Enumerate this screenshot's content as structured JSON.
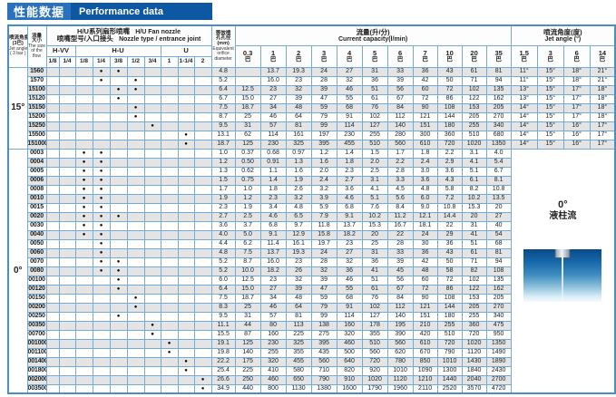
{
  "title": {
    "zh": "性能数据",
    "en": "Performance data"
  },
  "colors": {
    "title_blue": "#0d57a3",
    "title_blue_light": "#2a72bd",
    "border_blue": "#74aad4",
    "row_gray": "#e4e4e4"
  },
  "header": {
    "jet_angle_col": {
      "zh": "喷流角度",
      "zh2": "(3巴)",
      "en": "Jet angle",
      "en2": "( 3 bar )"
    },
    "flow_col": {
      "zh": "流量",
      "zh2": "大小",
      "en1": "The size",
      "en2": "of the",
      "en3": "flow"
    },
    "nozzle_group": {
      "zh": "H/U系列扇形喷嘴",
      "en": "H/U  Fan nozzle",
      "zh2": "喷嘴型号/入口接头",
      "en2": "Nozzle type / entrance joint"
    },
    "nozzle_subgroups": [
      {
        "label": "H-VV",
        "cols": [
          "1/8",
          "1/4"
        ]
      },
      {
        "label": "H-U",
        "cols": [
          "1/8",
          "1/4",
          "3/8",
          "1/2",
          "3/4"
        ]
      },
      {
        "label": "U",
        "cols": [
          "1",
          "1-1/4",
          "2"
        ]
      }
    ],
    "orifice_col": {
      "zh": "等效喷",
      "zh2": "孔孔径",
      "unit": "(mm)",
      "en1": "Equivalent",
      "en2": "orifice",
      "en3": "diameter"
    },
    "capacity_group": {
      "zh": "流量(升/分)",
      "en": "Current capacity(l/min)"
    },
    "pressures": [
      "0.3",
      "1",
      "2",
      "3",
      "4",
      "5",
      "6",
      "7",
      "10",
      "20",
      "35"
    ],
    "bar_unit": "巴",
    "angle_group": {
      "zh": "喷流角度(度)",
      "en": "Jet angle (°)"
    },
    "angle_pressures": [
      "1.5",
      "3",
      "6",
      "14"
    ]
  },
  "sections": [
    {
      "angle": "15°",
      "rows": [
        {
          "flow": "1560",
          "dots": [
            3,
            4
          ],
          "orifice": "4.8",
          "cap": [
            "",
            "13.7",
            "19.3",
            "24",
            "27",
            "31",
            "33",
            "36",
            "43",
            "61",
            "81"
          ],
          "angles": [
            "11°",
            "15°",
            "18°",
            "21°"
          ]
        },
        {
          "flow": "1570",
          "dots": [
            3,
            5
          ],
          "orifice": "5.2",
          "cap": [
            "",
            "16.0",
            "23",
            "28",
            "32",
            "36",
            "39",
            "42",
            "50",
            "71",
            "94"
          ],
          "angles": [
            "11°",
            "15°",
            "18°",
            "21°"
          ]
        },
        {
          "flow": "15100",
          "dots": [
            4,
            5
          ],
          "orifice": "6.4",
          "cap": [
            "12.5",
            "23",
            "32",
            "39",
            "46",
            "51",
            "56",
            "60",
            "72",
            "102",
            "135"
          ],
          "angles": [
            "13°",
            "15°",
            "17°",
            "18°"
          ]
        },
        {
          "flow": "15120",
          "dots": [
            4
          ],
          "orifice": "6.7",
          "cap": [
            "15.0",
            "27",
            "39",
            "47",
            "55",
            "61",
            "67",
            "72",
            "86",
            "122",
            "162"
          ],
          "angles": [
            "13°",
            "15°",
            "17°",
            "18°"
          ]
        },
        {
          "flow": "15150",
          "dots": [
            5
          ],
          "orifice": "7.5",
          "cap": [
            "18.7",
            "34",
            "48",
            "59",
            "68",
            "76",
            "84",
            "90",
            "108",
            "153",
            "205"
          ],
          "angles": [
            "14°",
            "15°",
            "17°",
            "18°"
          ]
        },
        {
          "flow": "15200",
          "dots": [
            5
          ],
          "orifice": "8.7",
          "cap": [
            "25",
            "46",
            "64",
            "79",
            "91",
            "102",
            "112",
            "121",
            "144",
            "205",
            "270"
          ],
          "angles": [
            "14°",
            "15°",
            "17°",
            "18°"
          ]
        },
        {
          "flow": "15250",
          "dots": [
            6
          ],
          "orifice": "9.5",
          "cap": [
            "31",
            "57",
            "81",
            "99",
            "114",
            "127",
            "140",
            "151",
            "180",
            "255",
            "340"
          ],
          "angles": [
            "14°",
            "15°",
            "16°",
            "17°"
          ]
        },
        {
          "flow": "15500",
          "dots": [
            8
          ],
          "orifice": "13.1",
          "cap": [
            "62",
            "114",
            "161",
            "197",
            "230",
            "255",
            "280",
            "300",
            "360",
            "510",
            "680"
          ],
          "angles": [
            "14°",
            "15°",
            "16°",
            "17°"
          ]
        },
        {
          "flow": "151000",
          "dots": [
            8
          ],
          "orifice": "18.7",
          "cap": [
            "125",
            "230",
            "325",
            "395",
            "455",
            "510",
            "560",
            "610",
            "720",
            "1020",
            "1350"
          ],
          "angles": [
            "14°",
            "15°",
            "16°",
            "17°"
          ]
        }
      ]
    },
    {
      "angle": "0°",
      "right_label": {
        "line1": "0°",
        "line2": "液柱流"
      },
      "rows": [
        {
          "flow": "0003",
          "dots": [
            2,
            3
          ],
          "orifice": "1.0",
          "cap": [
            "0.37",
            "0.68",
            "0.97",
            "1.2",
            "1.4",
            "1.5",
            "1.7",
            "1.8",
            "2.2",
            "3.1",
            "4.0"
          ]
        },
        {
          "flow": "0004",
          "dots": [
            2,
            3
          ],
          "orifice": "1.2",
          "cap": [
            "0.50",
            "0.91",
            "1.3",
            "1.6",
            "1.8",
            "2.0",
            "2.2",
            "2.4",
            "2.9",
            "4.1",
            "5.4"
          ]
        },
        {
          "flow": "0005",
          "dots": [
            2,
            3
          ],
          "orifice": "1.3",
          "cap": [
            "0.62",
            "1.1",
            "1.6",
            "2.0",
            "2.3",
            "2.5",
            "2.8",
            "3.0",
            "3.6",
            "5.1",
            "6.7"
          ]
        },
        {
          "flow": "0006",
          "dots": [
            2,
            3
          ],
          "orifice": "1.5",
          "cap": [
            "0.75",
            "1.4",
            "1.9",
            "2.4",
            "2.7",
            "3.1",
            "3.3",
            "3.6",
            "4.3",
            "6.1",
            "8.1"
          ]
        },
        {
          "flow": "0008",
          "dots": [
            2,
            3
          ],
          "orifice": "1.7",
          "cap": [
            "1.0",
            "1.8",
            "2.6",
            "3.2",
            "3.6",
            "4.1",
            "4.5",
            "4.8",
            "5.8",
            "8.2",
            "10.8"
          ]
        },
        {
          "flow": "0010",
          "dots": [
            2,
            3
          ],
          "orifice": "1.9",
          "cap": [
            "1.2",
            "2.3",
            "3.2",
            "3.9",
            "4.6",
            "5.1",
            "5.6",
            "6.0",
            "7.2",
            "10.2",
            "13.5"
          ]
        },
        {
          "flow": "0015",
          "dots": [
            2,
            3
          ],
          "orifice": "2.3",
          "cap": [
            "1.9",
            "3.4",
            "4.8",
            "5.9",
            "6.8",
            "7.6",
            "8.4",
            "9.0",
            "10.8",
            "15.3",
            "20"
          ]
        },
        {
          "flow": "0020",
          "dots": [
            2,
            3,
            4
          ],
          "orifice": "2.7",
          "cap": [
            "2.5",
            "4.6",
            "6.5",
            "7.9",
            "9.1",
            "10.2",
            "11.2",
            "12.1",
            "14.4",
            "20",
            "27"
          ]
        },
        {
          "flow": "0030",
          "dots": [
            2,
            3
          ],
          "orifice": "3.6",
          "cap": [
            "3.7",
            "6.8",
            "9.7",
            "11.8",
            "13.7",
            "15.3",
            "16.7",
            "18.1",
            "22",
            "31",
            "40"
          ]
        },
        {
          "flow": "0040",
          "dots": [
            2,
            3
          ],
          "orifice": "4.0",
          "cap": [
            "5.0",
            "9.1",
            "12.9",
            "15.8",
            "18.2",
            "20",
            "22",
            "24",
            "29",
            "41",
            "54"
          ]
        },
        {
          "flow": "0050",
          "dots": [
            3
          ],
          "orifice": "4.4",
          "cap": [
            "6.2",
            "11.4",
            "16.1",
            "19.7",
            "23",
            "25",
            "28",
            "30",
            "36",
            "51",
            "68"
          ]
        },
        {
          "flow": "0060",
          "dots": [
            3
          ],
          "orifice": "4.8",
          "cap": [
            "7.5",
            "13.7",
            "19.3",
            "24",
            "27",
            "31",
            "33",
            "36",
            "43",
            "61",
            "81"
          ]
        },
        {
          "flow": "0070",
          "dots": [
            3,
            4
          ],
          "orifice": "5.2",
          "cap": [
            "8.7",
            "16.0",
            "23",
            "28",
            "32",
            "36",
            "39",
            "42",
            "50",
            "71",
            "94"
          ]
        },
        {
          "flow": "0080",
          "dots": [
            3,
            4
          ],
          "orifice": "5.2",
          "cap": [
            "10.0",
            "18.2",
            "26",
            "32",
            "36",
            "41",
            "45",
            "48",
            "58",
            "82",
            "108"
          ]
        },
        {
          "flow": "00100",
          "dots": [
            4
          ],
          "orifice": "6.0",
          "cap": [
            "12.5",
            "23",
            "32",
            "39",
            "46",
            "51",
            "56",
            "60",
            "72",
            "102",
            "135"
          ]
        },
        {
          "flow": "00120",
          "dots": [
            4
          ],
          "orifice": "6.4",
          "cap": [
            "15.0",
            "27",
            "39",
            "47",
            "55",
            "61",
            "67",
            "72",
            "86",
            "122",
            "162"
          ]
        },
        {
          "flow": "00150",
          "dots": [
            5
          ],
          "orifice": "7.5",
          "cap": [
            "18.7",
            "34",
            "48",
            "59",
            "68",
            "76",
            "84",
            "90",
            "108",
            "153",
            "205"
          ]
        },
        {
          "flow": "00200",
          "dots": [
            5
          ],
          "orifice": "8.3",
          "cap": [
            "25",
            "46",
            "64",
            "79",
            "91",
            "102",
            "112",
            "121",
            "144",
            "205",
            "270"
          ]
        },
        {
          "flow": "00250",
          "dots": [
            4
          ],
          "orifice": "9.5",
          "cap": [
            "31",
            "57",
            "81",
            "99",
            "114",
            "127",
            "140",
            "151",
            "180",
            "255",
            "340"
          ]
        },
        {
          "flow": "00350",
          "dots": [
            6
          ],
          "orifice": "11.1",
          "cap": [
            "44",
            "80",
            "113",
            "138",
            "160",
            "178",
            "195",
            "210",
            "255",
            "360",
            "475"
          ]
        },
        {
          "flow": "00700",
          "dots": [
            6
          ],
          "orifice": "15.5",
          "cap": [
            "87",
            "160",
            "225",
            "275",
            "320",
            "355",
            "390",
            "420",
            "510",
            "720",
            "950"
          ]
        },
        {
          "flow": "001000",
          "dots": [
            7
          ],
          "orifice": "19.1",
          "cap": [
            "125",
            "230",
            "325",
            "395",
            "460",
            "510",
            "560",
            "610",
            "720",
            "1020",
            "1350"
          ]
        },
        {
          "flow": "001100",
          "dots": [
            7
          ],
          "orifice": "19.8",
          "cap": [
            "140",
            "255",
            "355",
            "435",
            "500",
            "560",
            "620",
            "670",
            "790",
            "1120",
            "1490"
          ]
        },
        {
          "flow": "001400",
          "dots": [
            8
          ],
          "orifice": "22.2",
          "cap": [
            "175",
            "320",
            "455",
            "560",
            "640",
            "720",
            "780",
            "850",
            "1010",
            "1430",
            "1890"
          ]
        },
        {
          "flow": "001800",
          "dots": [
            8
          ],
          "orifice": "25.4",
          "cap": [
            "225",
            "410",
            "580",
            "710",
            "820",
            "920",
            "1010",
            "1090",
            "1300",
            "1840",
            "2430"
          ]
        },
        {
          "flow": "002000",
          "dots": [
            9
          ],
          "orifice": "26.6",
          "cap": [
            "250",
            "460",
            "650",
            "790",
            "910",
            "1020",
            "1120",
            "1210",
            "1440",
            "2040",
            "2700"
          ]
        },
        {
          "flow": "003500",
          "dots": [
            9
          ],
          "orifice": "34.9",
          "cap": [
            "440",
            "800",
            "1130",
            "1380",
            "1600",
            "1790",
            "1960",
            "2110",
            "2520",
            "3570",
            "4720"
          ]
        }
      ]
    }
  ]
}
